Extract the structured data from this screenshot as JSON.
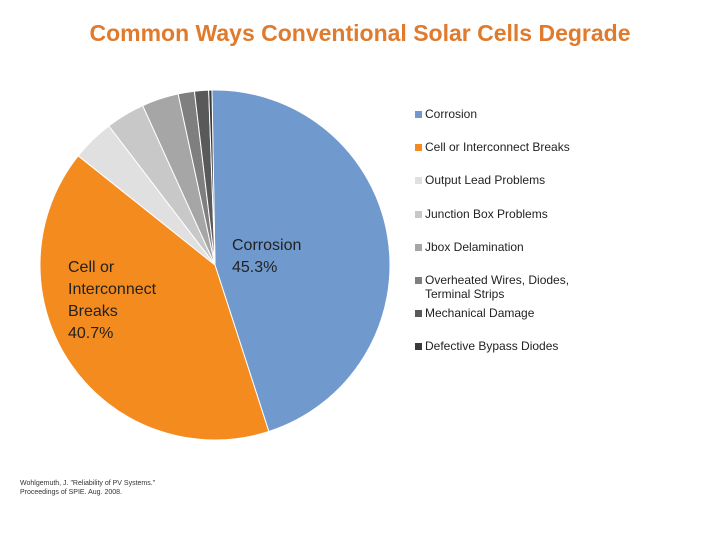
{
  "title": "Common Ways Conventional Solar Cells Degrade",
  "source_line1": "Wohlgemuth, J. \"Reliability of PV Systems.\"",
  "source_line2": "Proceedings of SPIE. Aug. 2008.",
  "chart_data": {
    "type": "pie",
    "title": "Common Ways Conventional Solar Cells Degrade",
    "start_angle_deg": -1,
    "direction": "clockwise",
    "slices": [
      {
        "label": "Corrosion",
        "value": 45.3,
        "color": "#7099cd",
        "data_label": [
          "Corrosion",
          "45.3%"
        ]
      },
      {
        "label": "Cell or Interconnect Breaks",
        "value": 40.7,
        "color": "#f38b1f",
        "data_label": [
          "Cell or",
          "Interconnect",
          "Breaks",
          "40.7%"
        ]
      },
      {
        "label": "Output Lead Problems",
        "value": 3.9,
        "color": "#e0e0e0",
        "data_label": []
      },
      {
        "label": "Junction Box Problems",
        "value": 3.6,
        "color": "#c8c8c8",
        "data_label": []
      },
      {
        "label": "Jbox Delamination",
        "value": 3.4,
        "color": "#a6a6a6",
        "data_label": []
      },
      {
        "label": "Overheated Wires, Diodes, Terminal Strips",
        "value": 1.5,
        "color": "#7f7f7f",
        "data_label": []
      },
      {
        "label": "Mechanical Damage",
        "value": 1.3,
        "color": "#595959",
        "data_label": []
      },
      {
        "label": "Defective Bypass Diodes",
        "value": 0.3,
        "color": "#3a3a3a",
        "data_label": []
      }
    ],
    "legend": {
      "position": "right",
      "entries": [
        {
          "label": "Corrosion",
          "color": "#7099cd"
        },
        {
          "label": "Cell or Interconnect Breaks",
          "color": "#f38b1f"
        },
        {
          "label": "Output Lead Problems",
          "color": "#e0e0e0"
        },
        {
          "label": "Junction Box Problems",
          "color": "#c8c8c8"
        },
        {
          "label": "Jbox Delamination",
          "color": "#a6a6a6"
        },
        {
          "label": "Overheated Wires, Diodes, Terminal Strips",
          "color": "#7f7f7f"
        },
        {
          "label": "Mechanical Damage",
          "color": "#595959"
        },
        {
          "label": "Defective Bypass Diodes",
          "color": "#3a3a3a"
        }
      ]
    }
  }
}
